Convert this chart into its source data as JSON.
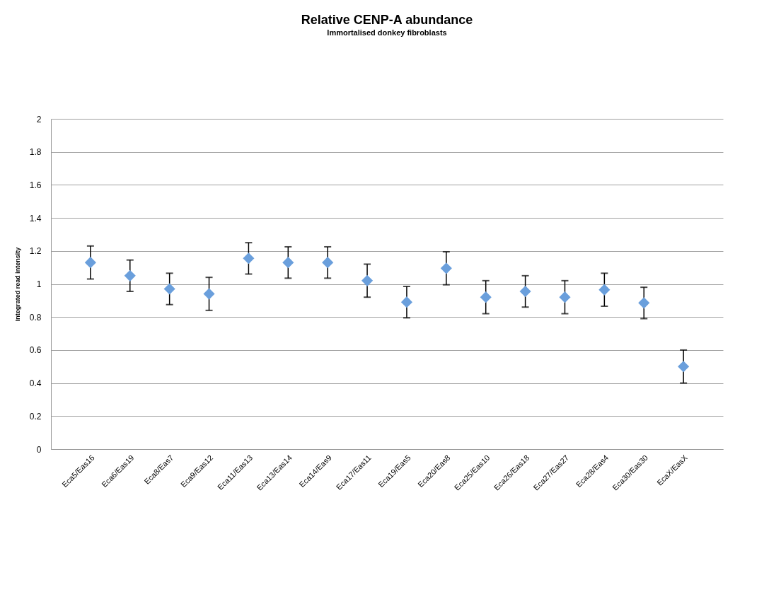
{
  "chart_data": {
    "type": "scatter",
    "title": "Relative CENP-A abundance",
    "subtitle": "Immortalised donkey fibroblasts",
    "ylabel": "Integrated read intensity",
    "categories": [
      "Eca5/Eas16",
      "Eca6/Eas19",
      "Eca8/Eas7",
      "Eca9/Eas12",
      "Eca11/Eas13",
      "Eca13/Eas14",
      "Eca14/Eas9",
      "Eca17/Eas11",
      "Eca19/Eas5",
      "Eca20/Eas8",
      "Eca25/Eas10",
      "Eca26/Eas18",
      "Eca27/Eas27",
      "Eca28/Eas4",
      "Eca30/Eas30",
      "EcaX/EasX"
    ],
    "series": [
      {
        "color": "#6a9fdc",
        "values": [
          1.13,
          1.05,
          0.97,
          0.94,
          1.155,
          1.13,
          1.13,
          1.02,
          0.89,
          1.095,
          0.92,
          0.955,
          0.92,
          0.965,
          0.885,
          0.5
        ],
        "errors": [
          0.1,
          0.095,
          0.095,
          0.1,
          0.095,
          0.095,
          0.095,
          0.1,
          0.095,
          0.1,
          0.1,
          0.095,
          0.1,
          0.1,
          0.095,
          0.1
        ]
      }
    ],
    "ylim": [
      0,
      2
    ],
    "yticks": [
      0,
      0.2,
      0.4,
      0.6,
      0.8,
      1,
      1.2,
      1.4,
      1.6,
      1.8,
      2
    ],
    "grid": "y",
    "marker": "diamond",
    "legend": false
  }
}
